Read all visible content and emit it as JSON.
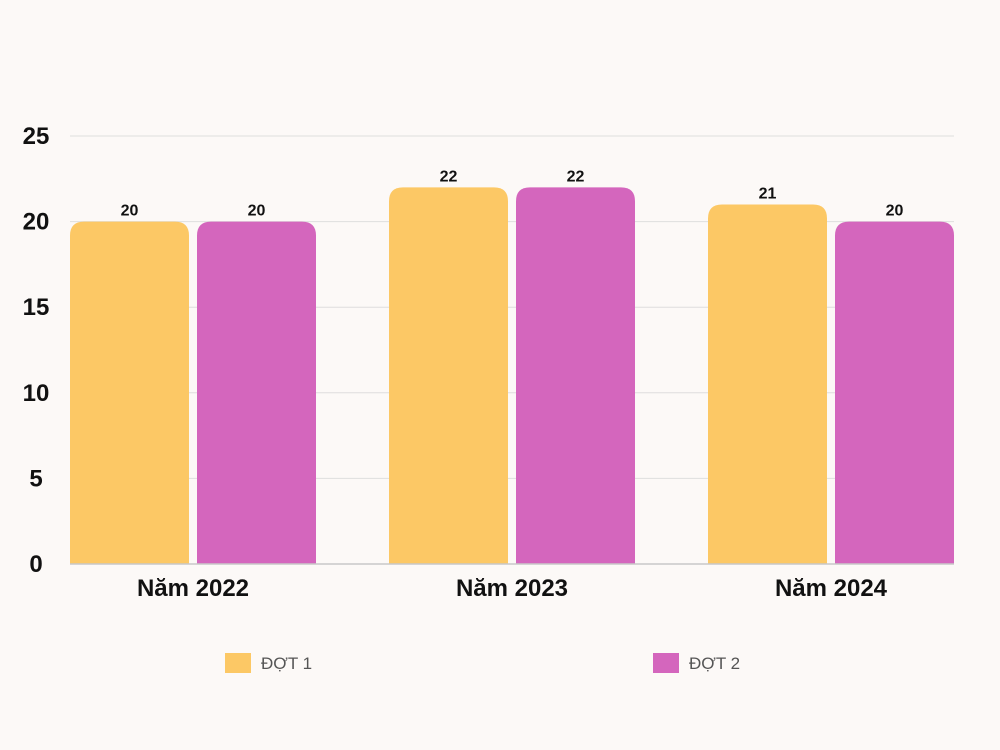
{
  "chart_data": {
    "type": "bar",
    "categories": [
      "Năm 2022",
      "Năm 2023",
      "Năm 2024"
    ],
    "series": [
      {
        "name": "ĐỢT 1",
        "values": [
          20,
          22,
          21
        ],
        "color": "#fcc865"
      },
      {
        "name": "ĐỢT 2",
        "values": [
          20,
          22,
          20
        ],
        "color": "#d466bd"
      }
    ],
    "title": "",
    "xlabel": "",
    "ylabel": "",
    "ylim": [
      0,
      25
    ],
    "yticks": [
      0,
      5,
      10,
      15,
      20,
      25
    ],
    "grid": true,
    "legend": "bottom",
    "gridColor": "#dedede",
    "axisColor": "#c8c8c8"
  }
}
